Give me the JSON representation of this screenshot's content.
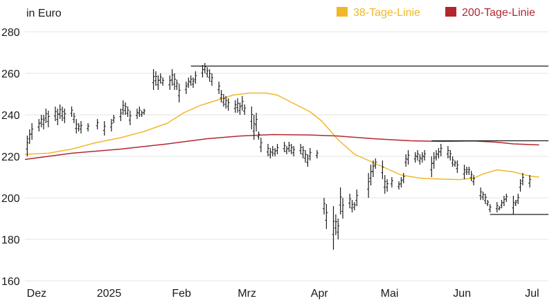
{
  "chart_data": {
    "type": "line",
    "ylabel": "in Euro",
    "ylim": [
      160,
      280
    ],
    "yticks": [
      160,
      180,
      200,
      220,
      240,
      260,
      280
    ],
    "xlim": [
      "2024-11-26",
      "2025-07-08"
    ],
    "xticks": [
      {
        "label": "Dez",
        "date": "2024-12-01"
      },
      {
        "label": "2025",
        "date": "2025-01-01"
      },
      {
        "label": "Feb",
        "date": "2025-02-01"
      },
      {
        "label": "Mrz",
        "date": "2025-03-01"
      },
      {
        "label": "Apr",
        "date": "2025-04-01"
      },
      {
        "label": "Mai",
        "date": "2025-05-01"
      },
      {
        "label": "Jun",
        "date": "2025-06-01"
      },
      {
        "label": "Jul",
        "date": "2025-07-01"
      }
    ],
    "grid": "horizontal",
    "legend_position": "top-right",
    "series": [
      {
        "name": "38-Tage-Linie",
        "color": "#f0b728",
        "points": [
          [
            "2024-11-26",
            221
          ],
          [
            "2024-12-06",
            221.5
          ],
          [
            "2024-12-16",
            223.5
          ],
          [
            "2024-12-26",
            226.5
          ],
          [
            "2025-01-06",
            229
          ],
          [
            "2025-01-16",
            232
          ],
          [
            "2025-01-26",
            236
          ],
          [
            "2025-02-02",
            241
          ],
          [
            "2025-02-09",
            244.5
          ],
          [
            "2025-02-16",
            247
          ],
          [
            "2025-02-23",
            249.5
          ],
          [
            "2025-03-02",
            250.5
          ],
          [
            "2025-03-09",
            250.5
          ],
          [
            "2025-03-14",
            249.5
          ],
          [
            "2025-03-21",
            245.5
          ],
          [
            "2025-03-28",
            241.5
          ],
          [
            "2025-04-02",
            237
          ],
          [
            "2025-04-09",
            228
          ],
          [
            "2025-04-16",
            221
          ],
          [
            "2025-04-24",
            217
          ],
          [
            "2025-04-30",
            214
          ],
          [
            "2025-05-06",
            211
          ],
          [
            "2025-05-14",
            209.5
          ],
          [
            "2025-05-24",
            209
          ],
          [
            "2025-05-31",
            208.8
          ],
          [
            "2025-06-06",
            209.5
          ],
          [
            "2025-06-10",
            211.5
          ],
          [
            "2025-06-16",
            213.5
          ],
          [
            "2025-06-23",
            212.5
          ],
          [
            "2025-06-30",
            210.5
          ],
          [
            "2025-07-04",
            210
          ]
        ]
      },
      {
        "name": "200-Tage-Linie",
        "color": "#b3262f",
        "points": [
          [
            "2024-11-26",
            218.5
          ],
          [
            "2024-12-16",
            221.5
          ],
          [
            "2025-01-06",
            223.5
          ],
          [
            "2025-01-26",
            226
          ],
          [
            "2025-02-12",
            228.5
          ],
          [
            "2025-02-26",
            229.8
          ],
          [
            "2025-03-12",
            230.5
          ],
          [
            "2025-03-28",
            230.3
          ],
          [
            "2025-04-09",
            229.8
          ],
          [
            "2025-04-24",
            228.5
          ],
          [
            "2025-05-10",
            227.5
          ],
          [
            "2025-05-24",
            227.2
          ],
          [
            "2025-06-06",
            227.4
          ],
          [
            "2025-06-16",
            226.8
          ],
          [
            "2025-06-23",
            226
          ],
          [
            "2025-07-04",
            225.5
          ]
        ]
      }
    ],
    "price_bars": [
      [
        "2024-11-27",
        220,
        230
      ],
      [
        "2024-11-28",
        226,
        233
      ],
      [
        "2024-11-29",
        228,
        236
      ],
      [
        "2024-12-02",
        232,
        238
      ],
      [
        "2024-12-03",
        234,
        240
      ],
      [
        "2024-12-04",
        233,
        240
      ],
      [
        "2024-12-05",
        236,
        243
      ],
      [
        "2024-12-06",
        234,
        242
      ],
      [
        "2024-12-09",
        237,
        244
      ],
      [
        "2024-12-10",
        235,
        243
      ],
      [
        "2024-12-11",
        238,
        245
      ],
      [
        "2024-12-12",
        237,
        244
      ],
      [
        "2024-12-13",
        236,
        243
      ],
      [
        "2024-12-16",
        239,
        244
      ],
      [
        "2024-12-17",
        236,
        241
      ],
      [
        "2024-12-18",
        231,
        238
      ],
      [
        "2024-12-19",
        232,
        236
      ],
      [
        "2024-12-20",
        231,
        237
      ],
      [
        "2024-12-23",
        232,
        236
      ],
      [
        "2024-12-27",
        233,
        238
      ],
      [
        "2024-12-30",
        230,
        237
      ],
      [
        "2025-01-02",
        232,
        238
      ],
      [
        "2025-01-03",
        236,
        240
      ],
      [
        "2025-01-06",
        237,
        243
      ],
      [
        "2025-01-07",
        240,
        247
      ],
      [
        "2025-01-08",
        240,
        246
      ],
      [
        "2025-01-09",
        239,
        244
      ],
      [
        "2025-01-10",
        235,
        242
      ],
      [
        "2025-01-13",
        238,
        243
      ],
      [
        "2025-01-14",
        239,
        244
      ],
      [
        "2025-01-15",
        239,
        242
      ],
      [
        "2025-01-16",
        240,
        243
      ],
      [
        "2025-01-20",
        252,
        262
      ],
      [
        "2025-01-21",
        254,
        261
      ],
      [
        "2025-01-22",
        252,
        259
      ],
      [
        "2025-01-23",
        255,
        260
      ],
      [
        "2025-01-24",
        254,
        258
      ],
      [
        "2025-01-27",
        252,
        259
      ],
      [
        "2025-01-28",
        254,
        262
      ],
      [
        "2025-01-29",
        252,
        260
      ],
      [
        "2025-01-30",
        252,
        257
      ],
      [
        "2025-01-31",
        246,
        255
      ],
      [
        "2025-02-03",
        250,
        256
      ],
      [
        "2025-02-04",
        253,
        258
      ],
      [
        "2025-02-05",
        254,
        259
      ],
      [
        "2025-02-06",
        253,
        258
      ],
      [
        "2025-02-07",
        255,
        261
      ],
      [
        "2025-02-10",
        258,
        264
      ],
      [
        "2025-02-11",
        260,
        265
      ],
      [
        "2025-02-12",
        258,
        263
      ],
      [
        "2025-02-13",
        256,
        262
      ],
      [
        "2025-02-14",
        254,
        260
      ],
      [
        "2025-02-17",
        250,
        256
      ],
      [
        "2025-02-18",
        246,
        252
      ],
      [
        "2025-02-19",
        244,
        250
      ],
      [
        "2025-02-20",
        243,
        249
      ],
      [
        "2025-02-21",
        242,
        248
      ],
      [
        "2025-02-24",
        241,
        247
      ],
      [
        "2025-02-25",
        241,
        248
      ],
      [
        "2025-02-26",
        240,
        246
      ],
      [
        "2025-02-27",
        242,
        249
      ],
      [
        "2025-02-28",
        240,
        245
      ],
      [
        "2025-03-03",
        233,
        244
      ],
      [
        "2025-03-04",
        228,
        240
      ],
      [
        "2025-03-05",
        232,
        241
      ],
      [
        "2025-03-06",
        228,
        232
      ],
      [
        "2025-03-07",
        222,
        229
      ],
      [
        "2025-03-10",
        220,
        226
      ],
      [
        "2025-03-11",
        219,
        224
      ],
      [
        "2025-03-12",
        220,
        225
      ],
      [
        "2025-03-13",
        220,
        224
      ],
      [
        "2025-03-14",
        221,
        226
      ],
      [
        "2025-03-17",
        222,
        227
      ],
      [
        "2025-03-18",
        221,
        225
      ],
      [
        "2025-03-19",
        222,
        227
      ],
      [
        "2025-03-20",
        221,
        226
      ],
      [
        "2025-03-21",
        220,
        225
      ],
      [
        "2025-03-24",
        221,
        226
      ],
      [
        "2025-03-25",
        219,
        225
      ],
      [
        "2025-03-26",
        217,
        223
      ],
      [
        "2025-03-27",
        215,
        221
      ],
      [
        "2025-03-28",
        218,
        224
      ],
      [
        "2025-03-31",
        219,
        223
      ],
      [
        "2025-04-03",
        192,
        200
      ],
      [
        "2025-04-04",
        185,
        197
      ],
      [
        "2025-04-07",
        175,
        196
      ],
      [
        "2025-04-08",
        182,
        192
      ],
      [
        "2025-04-09",
        180,
        190
      ],
      [
        "2025-04-10",
        192,
        205
      ],
      [
        "2025-04-11",
        190,
        200
      ],
      [
        "2025-04-14",
        195,
        202
      ],
      [
        "2025-04-15",
        193,
        199
      ],
      [
        "2025-04-16",
        194,
        198
      ],
      [
        "2025-04-17",
        196,
        204
      ],
      [
        "2025-04-22",
        200,
        212
      ],
      [
        "2025-04-23",
        206,
        216
      ],
      [
        "2025-04-24",
        210,
        218
      ],
      [
        "2025-04-25",
        214,
        219
      ],
      [
        "2025-04-28",
        209,
        218
      ],
      [
        "2025-04-29",
        202,
        211
      ],
      [
        "2025-04-30",
        203,
        209
      ],
      [
        "2025-05-02",
        205,
        210
      ],
      [
        "2025-05-05",
        204,
        208
      ],
      [
        "2025-05-06",
        205,
        210
      ],
      [
        "2025-05-07",
        207,
        212
      ],
      [
        "2025-05-08",
        215,
        221
      ],
      [
        "2025-05-09",
        216,
        223
      ],
      [
        "2025-05-12",
        217,
        222
      ],
      [
        "2025-05-13",
        218,
        223
      ],
      [
        "2025-05-14",
        216,
        221
      ],
      [
        "2025-05-15",
        217,
        222
      ],
      [
        "2025-05-16",
        218,
        223
      ],
      [
        "2025-05-19",
        210,
        220
      ],
      [
        "2025-05-20",
        214,
        222
      ],
      [
        "2025-05-21",
        218,
        223
      ],
      [
        "2025-05-22",
        219,
        224
      ],
      [
        "2025-05-23",
        220,
        226
      ],
      [
        "2025-05-26",
        219,
        225
      ],
      [
        "2025-05-27",
        218,
        223
      ],
      [
        "2025-05-28",
        215,
        220
      ],
      [
        "2025-05-29",
        215,
        218
      ],
      [
        "2025-05-30",
        212,
        218
      ],
      [
        "2025-06-02",
        209,
        216
      ],
      [
        "2025-06-03",
        211,
        215
      ],
      [
        "2025-06-04",
        211,
        215
      ],
      [
        "2025-06-05",
        208,
        213
      ],
      [
        "2025-06-06",
        206,
        211
      ],
      [
        "2025-06-09",
        199,
        205
      ],
      [
        "2025-06-10",
        199,
        203
      ],
      [
        "2025-06-11",
        197,
        202
      ],
      [
        "2025-06-12",
        196,
        199
      ],
      [
        "2025-06-13",
        193,
        197
      ],
      [
        "2025-06-16",
        193,
        198
      ],
      [
        "2025-06-17",
        194,
        196
      ],
      [
        "2025-06-18",
        195,
        199
      ],
      [
        "2025-06-19",
        196,
        201
      ],
      [
        "2025-06-20",
        198,
        202
      ],
      [
        "2025-06-23",
        192,
        201
      ],
      [
        "2025-06-24",
        196,
        199
      ],
      [
        "2025-06-25",
        197,
        202
      ],
      [
        "2025-06-26",
        203,
        209
      ],
      [
        "2025-06-27",
        206,
        212
      ],
      [
        "2025-06-30",
        205,
        211
      ]
    ],
    "reference_lines": [
      {
        "y": 263.5,
        "from": "2025-02-05",
        "to": "2025-07-08"
      },
      {
        "y": 227.5,
        "from": "2025-05-19",
        "to": "2025-07-08"
      },
      {
        "y": 192,
        "from": "2025-06-13",
        "to": "2025-07-08"
      }
    ]
  }
}
